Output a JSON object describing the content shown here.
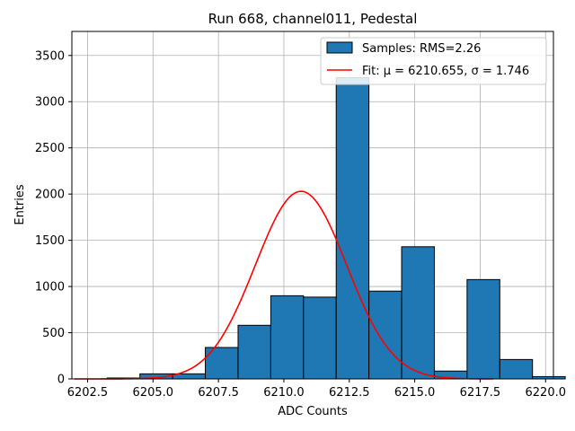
{
  "chart_data": {
    "type": "bar",
    "title": "Run 668, channel011, Pedestal",
    "xlabel": "ADC Counts",
    "ylabel": "Entries",
    "xlim": [
      6201.9,
      6220.3
    ],
    "ylim": [
      0,
      3760
    ],
    "x_ticks": [
      6202.5,
      6205.0,
      6207.5,
      6210.0,
      6212.5,
      6215.0,
      6217.5,
      6220.0
    ],
    "x_tick_labels": [
      "6202.5",
      "6205.0",
      "6207.5",
      "6210.0",
      "6212.5",
      "6215.0",
      "6217.5",
      "6220.0"
    ],
    "y_ticks": [
      0,
      500,
      1000,
      1500,
      2000,
      2500,
      3000,
      3500
    ],
    "y_tick_labels": [
      "0",
      "500",
      "1000",
      "1500",
      "2000",
      "2500",
      "3000",
      "3500"
    ],
    "grid": true,
    "legend_position": "top-right",
    "histogram": {
      "name": "Samples: RMS=2.26",
      "color": "#1f77b4",
      "edge_color": "#000000",
      "bins": [
        {
          "x0": 6202.0,
          "x1": 6203.25,
          "count": 0
        },
        {
          "x0": 6203.25,
          "x1": 6204.5,
          "count": 10
        },
        {
          "x0": 6204.5,
          "x1": 6205.75,
          "count": 55
        },
        {
          "x0": 6205.75,
          "x1": 6207.0,
          "count": 55
        },
        {
          "x0": 6207.0,
          "x1": 6208.25,
          "count": 340
        },
        {
          "x0": 6208.25,
          "x1": 6209.5,
          "count": 580
        },
        {
          "x0": 6209.5,
          "x1": 6210.75,
          "count": 900
        },
        {
          "x0": 6210.75,
          "x1": 6212.0,
          "count": 885
        },
        {
          "x0": 6212.0,
          "x1": 6213.25,
          "count": 3260
        },
        {
          "x0": 6213.25,
          "x1": 6214.5,
          "count": 950
        },
        {
          "x0": 6214.5,
          "x1": 6215.75,
          "count": 1430
        },
        {
          "x0": 6215.75,
          "x1": 6217.0,
          "count": 85
        },
        {
          "x0": 6217.0,
          "x1": 6218.25,
          "count": 1075
        },
        {
          "x0": 6218.25,
          "x1": 6219.5,
          "count": 210
        },
        {
          "x0": 6219.5,
          "x1": 6220.75,
          "count": 25
        }
      ]
    },
    "fit": {
      "name": "Fit: μ = 6210.655, σ = 1.746",
      "color": "#ff0000",
      "mu": 6210.655,
      "sigma": 1.746,
      "amplitude": 2030,
      "x_range": [
        6202.0,
        6218.0
      ]
    }
  }
}
